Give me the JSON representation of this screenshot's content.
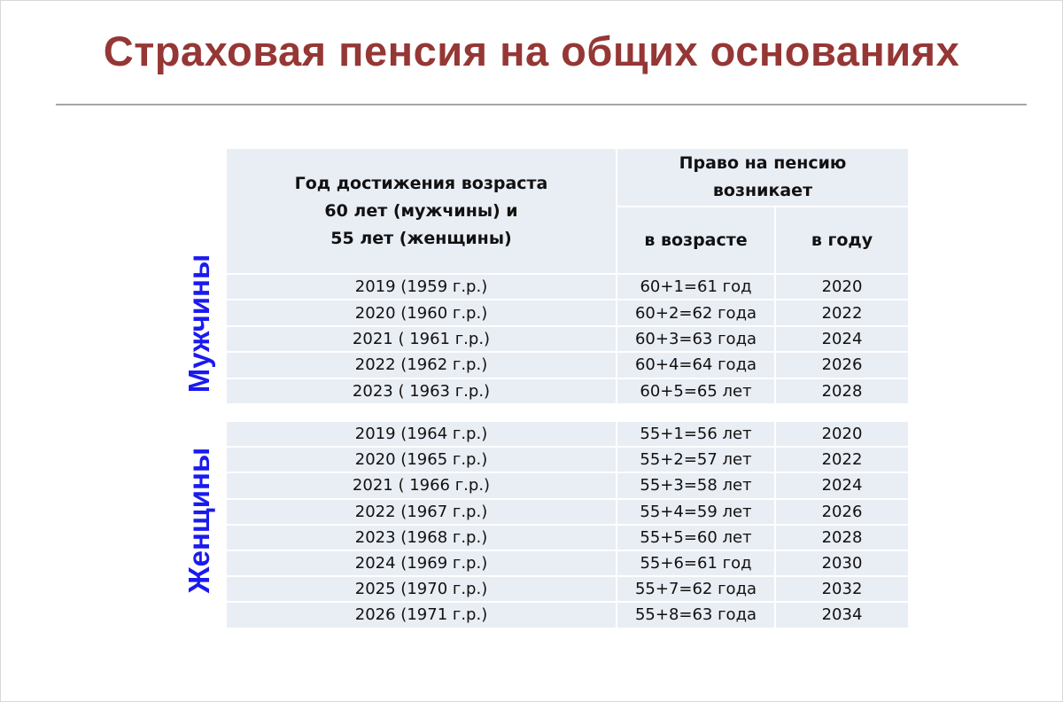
{
  "title": "Страховая пенсия на общих основаниях",
  "table": {
    "header": {
      "col1": "Год достижения возраста 60 лет  (мужчины) и 55 лет (женщины)",
      "col1_lines": [
        "Год достижения возраста",
        "60 лет  (мужчины) и",
        "55 лет (женщины)"
      ],
      "group": "Право на пенсию возникает",
      "group_lines": [
        "Право на пенсию",
        "возникает"
      ],
      "col2": "в возрасте",
      "col3": "в году"
    },
    "men_label": "Мужчины",
    "women_label": "Женщины",
    "men_rows": [
      [
        "2019 (1959 г.р.)",
        "60+1=61 год",
        "2020"
      ],
      [
        "2020 (1960 г.р.)",
        "60+2=62 года",
        "2022"
      ],
      [
        "2021 ( 1961 г.р.)",
        "60+3=63 года",
        "2024"
      ],
      [
        "2022 (1962 г.р.)",
        "60+4=64 года",
        "2026"
      ],
      [
        "2023 ( 1963 г.р.)",
        "60+5=65 лет",
        "2028"
      ]
    ],
    "women_rows": [
      [
        "2019 (1964 г.р.)",
        "55+1=56 лет",
        "2020"
      ],
      [
        "2020 (1965 г.р.)",
        "55+2=57 лет",
        "2022"
      ],
      [
        "2021 ( 1966 г.р.)",
        "55+3=58 лет",
        "2024"
      ],
      [
        "2022 (1967 г.р.)",
        "55+4=59 лет",
        "2026"
      ],
      [
        "2023 (1968 г.р.)",
        "55+5=60 лет",
        "2028"
      ],
      [
        "2024 (1969 г.р.)",
        "55+6=61 год",
        "2030"
      ],
      [
        "2025 (1970 г.р.)",
        "55+7=62 года",
        "2032"
      ],
      [
        "2026 (1971 г.р.)",
        "55+8=63 года",
        "2034"
      ]
    ]
  },
  "colors": {
    "title": "#953735",
    "side_labels": "#1a1aee",
    "cell_bg": "#e9edf4"
  }
}
